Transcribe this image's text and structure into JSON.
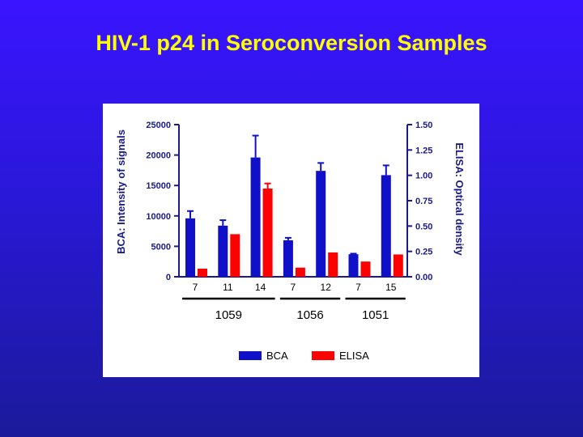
{
  "slide": {
    "title": "HIV-1 p24 in Seroconversion Samples"
  },
  "chart_data": {
    "type": "bar",
    "categories": [
      "7",
      "11",
      "14",
      "7",
      "12",
      "7",
      "15"
    ],
    "groups": [
      {
        "label": "1059",
        "size": 3
      },
      {
        "label": "1056",
        "size": 2
      },
      {
        "label": "1051",
        "size": 2
      }
    ],
    "series": [
      {
        "name": "BCA",
        "axis": "left",
        "color": "#1010c8",
        "values": [
          9600,
          8400,
          19600,
          6000,
          17400,
          3700,
          16700
        ],
        "errors": [
          1200,
          900,
          3600,
          400,
          1300,
          100,
          1600
        ]
      },
      {
        "name": "ELISA",
        "axis": "right",
        "color": "#ff0000",
        "values": [
          0.08,
          0.42,
          0.87,
          0.09,
          0.24,
          0.15,
          0.22
        ],
        "errors": [
          0,
          0,
          0.05,
          0,
          0,
          0,
          0
        ]
      }
    ],
    "ylabel": "BCA: Intensity of signals",
    "ylabel_right": "ELISA: Optical density",
    "ylim": [
      0,
      25000
    ],
    "ylim_right": [
      0,
      1.5
    ],
    "yticks": [
      "0",
      "5000",
      "10000",
      "15000",
      "20000",
      "25000"
    ],
    "yticks_right": [
      "0.00",
      "0.25",
      "0.50",
      "0.75",
      "1.00",
      "1.25",
      "1.50"
    ],
    "legend": [
      "BCA",
      "ELISA"
    ],
    "legend_position": "bottom",
    "grid": false
  }
}
